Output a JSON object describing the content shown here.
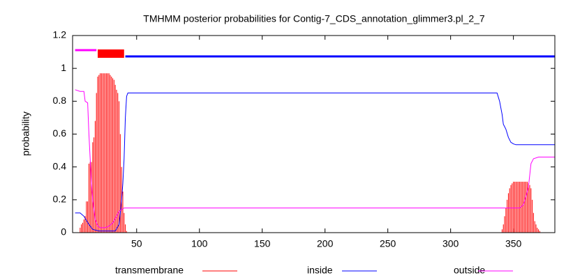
{
  "chart_data": {
    "type": "line",
    "title": "TMHMM posterior probabilities for Contig-7_CDS_annotation_glimmer3.pl_2_7",
    "ylabel": "probability",
    "xlim": [
      -1,
      383
    ],
    "ylim": [
      0,
      1.2
    ],
    "xticks": [
      50,
      100,
      150,
      200,
      250,
      300,
      350
    ],
    "yticks": [
      0,
      0.2,
      0.4,
      0.6,
      0.8,
      1,
      1.2
    ],
    "topology": [
      {
        "start": 1,
        "end": 18,
        "color": "#ff00ff"
      },
      {
        "start": 19,
        "end": 40,
        "color": "#ff0000"
      },
      {
        "start": 41,
        "end": 383,
        "color": "#0000ff"
      }
    ],
    "series": [
      {
        "name": "transmembrane",
        "color": "#ff0000",
        "style": "impulses",
        "x": [
          5,
          6,
          7,
          8,
          9,
          10,
          11,
          12,
          13,
          14,
          15,
          16,
          17,
          18,
          19,
          20,
          21,
          22,
          23,
          24,
          25,
          26,
          27,
          28,
          29,
          30,
          31,
          32,
          33,
          34,
          35,
          36,
          37,
          38,
          39,
          40,
          41,
          42,
          341,
          342,
          343,
          344,
          345,
          346,
          347,
          348,
          349,
          350,
          351,
          352,
          353,
          354,
          355,
          356,
          357,
          358,
          359,
          360,
          361,
          362,
          363,
          364,
          365,
          366,
          367,
          368,
          369,
          370,
          371
        ],
        "values": [
          0.03,
          0.05,
          0.06,
          0.08,
          0.1,
          0.19,
          0.19,
          0.42,
          0.43,
          0.43,
          0.55,
          0.58,
          0.68,
          0.85,
          0.95,
          0.96,
          0.97,
          0.97,
          0.97,
          0.97,
          0.97,
          0.97,
          0.97,
          0.97,
          0.96,
          0.95,
          0.94,
          0.93,
          0.9,
          0.87,
          0.85,
          0.8,
          0.6,
          0.4,
          0.25,
          0.12,
          0.05,
          0.01,
          0.02,
          0.05,
          0.1,
          0.15,
          0.2,
          0.24,
          0.27,
          0.29,
          0.3,
          0.31,
          0.31,
          0.31,
          0.31,
          0.31,
          0.31,
          0.31,
          0.31,
          0.31,
          0.31,
          0.31,
          0.31,
          0.3,
          0.29,
          0.27,
          0.2,
          0.12,
          0.07,
          0.05,
          0.03,
          0.02,
          0.01
        ]
      },
      {
        "name": "inside",
        "color": "#0000ff",
        "style": "line",
        "x": [
          1,
          5,
          8,
          12,
          15,
          20,
          33,
          36,
          37,
          38,
          39,
          40,
          41,
          42,
          43,
          337,
          339,
          341,
          342,
          344,
          346,
          348,
          350,
          352,
          383
        ],
        "values": [
          0.12,
          0.12,
          0.1,
          0.05,
          0.02,
          0.01,
          0.01,
          0.05,
          0.12,
          0.2,
          0.3,
          0.45,
          0.7,
          0.83,
          0.85,
          0.85,
          0.8,
          0.72,
          0.66,
          0.63,
          0.58,
          0.55,
          0.54,
          0.535,
          0.535
        ]
      },
      {
        "name": "outside",
        "color": "#ff00ff",
        "style": "line",
        "x": [
          1,
          5,
          8,
          9,
          11,
          12,
          13,
          14,
          15,
          17,
          19,
          21,
          25,
          28,
          31,
          34,
          36,
          38,
          40,
          355,
          358,
          360,
          362,
          363,
          364,
          366,
          370,
          383
        ],
        "values": [
          0.87,
          0.86,
          0.86,
          0.8,
          0.79,
          0.6,
          0.45,
          0.3,
          0.2,
          0.08,
          0.04,
          0.03,
          0.03,
          0.04,
          0.06,
          0.1,
          0.13,
          0.14,
          0.15,
          0.15,
          0.17,
          0.22,
          0.28,
          0.35,
          0.42,
          0.45,
          0.46,
          0.46
        ]
      }
    ]
  }
}
